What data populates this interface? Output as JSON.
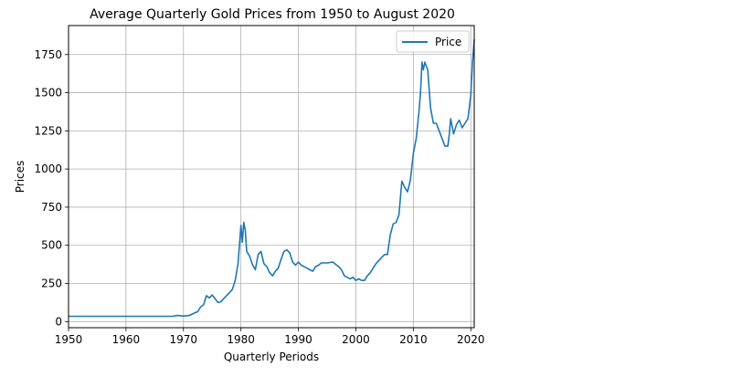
{
  "chart_data": {
    "type": "line",
    "title": "Average Quarterly Gold Prices from 1950 to August 2020",
    "xlabel": "Quarterly Periods",
    "ylabel": "Prices",
    "xlim": [
      1950,
      2020.6
    ],
    "ylim": [
      -40,
      1940
    ],
    "x_ticks": [
      1950,
      1960,
      1970,
      1980,
      1990,
      2000,
      2010,
      2020
    ],
    "y_ticks": [
      0,
      250,
      500,
      750,
      1000,
      1250,
      1500,
      1750
    ],
    "grid": true,
    "legend_position": "top-right",
    "series": [
      {
        "name": "Price",
        "color": "#1f77b4",
        "x": [
          1950,
          1955,
          1960,
          1965,
          1968,
          1969,
          1970,
          1971,
          1972,
          1972.5,
          1973,
          1973.5,
          1974,
          1974.5,
          1975,
          1975.5,
          1976,
          1976.5,
          1977,
          1978,
          1978.5,
          1979,
          1979.5,
          1980,
          1980.25,
          1980.5,
          1980.75,
          1981,
          1981.5,
          1982,
          1982.5,
          1983,
          1983.5,
          1984,
          1984.5,
          1985,
          1985.5,
          1986,
          1986.5,
          1987,
          1987.5,
          1988,
          1988.5,
          1989,
          1989.5,
          1990,
          1990.5,
          1991,
          1992,
          1992.5,
          1993,
          1993.5,
          1994,
          1995,
          1996,
          1997,
          1997.5,
          1998,
          1999,
          1999.5,
          2000,
          2000.5,
          2001,
          2001.5,
          2002,
          2002.5,
          2003,
          2003.5,
          2004,
          2004.5,
          2005,
          2005.5,
          2006,
          2006.5,
          2007,
          2007.5,
          2008,
          2008.5,
          2009,
          2009.5,
          2010,
          2010.5,
          2011,
          2011.25,
          2011.5,
          2011.75,
          2012,
          2012.5,
          2013,
          2013.5,
          2014,
          2014.5,
          2015,
          2015.5,
          2016,
          2016.25,
          2016.5,
          2017,
          2017.5,
          2018,
          2018.5,
          2019,
          2019.5,
          2020,
          2020.3,
          2020.6
        ],
        "y": [
          35,
          35,
          35,
          35,
          35,
          40,
          36,
          40,
          58,
          65,
          97,
          110,
          170,
          155,
          175,
          150,
          125,
          130,
          150,
          190,
          210,
          270,
          380,
          630,
          520,
          650,
          600,
          460,
          430,
          375,
          340,
          440,
          460,
          380,
          360,
          320,
          300,
          330,
          350,
          410,
          460,
          470,
          450,
          390,
          370,
          390,
          370,
          360,
          340,
          330,
          360,
          370,
          385,
          385,
          390,
          360,
          340,
          300,
          280,
          290,
          270,
          280,
          270,
          270,
          300,
          320,
          350,
          380,
          400,
          420,
          440,
          440,
          570,
          640,
          650,
          700,
          920,
          880,
          850,
          930,
          1100,
          1200,
          1380,
          1500,
          1700,
          1650,
          1700,
          1650,
          1400,
          1300,
          1300,
          1250,
          1200,
          1150,
          1150,
          1220,
          1330,
          1230,
          1290,
          1320,
          1270,
          1300,
          1330,
          1480,
          1700,
          1850
        ]
      }
    ]
  }
}
